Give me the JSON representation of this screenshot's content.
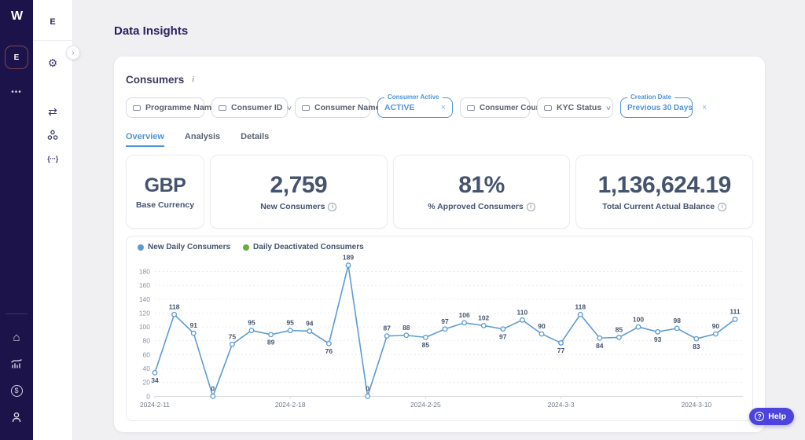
{
  "icons": {
    "logo": "W",
    "org_badge": "E",
    "more_dots": "•••",
    "home": "⌂",
    "dollar": "$",
    "gear": "⚙",
    "swap": "⇄",
    "code": "{···}",
    "chevron_right": "›",
    "chevron_down": "∨",
    "info": "i",
    "question": "?",
    "close": "×"
  },
  "sidebar_secondary": {
    "env_label": "E"
  },
  "page": {
    "title": "Data Insights"
  },
  "panel": {
    "title": "Consumers",
    "filters": [
      {
        "label": "Programme Name",
        "active": false
      },
      {
        "label": "Consumer ID",
        "active": false
      },
      {
        "label": "Consumer Name",
        "active": false
      },
      {
        "label": "Consumer Active",
        "value": "ACTIVE",
        "active": true
      },
      {
        "label": "Consumer Country",
        "active": false
      },
      {
        "label": "KYC Status",
        "active": false
      },
      {
        "label": "Creation Date",
        "value": "Previous 30 Days",
        "active": true
      }
    ],
    "tabs": [
      {
        "label": "Overview",
        "active": true
      },
      {
        "label": "Analysis",
        "active": false
      },
      {
        "label": "Details",
        "active": false
      }
    ],
    "kpis": [
      {
        "value": "GBP",
        "label": "Base Currency",
        "info": false
      },
      {
        "value": "2,759",
        "label": "New Consumers",
        "info": true
      },
      {
        "value": "81%",
        "label": "% Approved Consumers",
        "info": true
      },
      {
        "value": "1,136,624.19",
        "label": "Total Current Actual Balance",
        "info": true
      }
    ]
  },
  "chart_data": {
    "type": "line",
    "title": "",
    "legend_position": "top-left",
    "grid": "dashed-horizontal",
    "ylim": [
      0,
      180
    ],
    "y_ticks": [
      0,
      20,
      40,
      60,
      80,
      100,
      120,
      140,
      160,
      180
    ],
    "n_points": 31,
    "x_labels_shown": [
      "2024-2-11",
      "2024-2-18",
      "2024-2-25",
      "2024-3-3",
      "2024-3-10"
    ],
    "x_label_indices": [
      0,
      7,
      14,
      21,
      28
    ],
    "series": [
      {
        "name": "New Daily Consumers",
        "color": "#5b9bd5",
        "values": [
          34,
          118,
          91,
          0,
          75,
          95,
          89,
          95,
          94,
          76,
          189,
          0,
          87,
          88,
          85,
          97,
          106,
          102,
          97,
          110,
          90,
          77,
          118,
          84,
          85,
          100,
          93,
          98,
          83,
          90,
          111
        ]
      },
      {
        "name": "Daily Deactivated Consumers",
        "color": "#6aaa43",
        "values": []
      }
    ],
    "colors": {
      "line": "#5b9bd5",
      "marker_fill": "#ffffff",
      "label": "#44536e",
      "axis_text": "#8a93a3",
      "grid": "#ebebf0",
      "baseline": "#d9dade"
    }
  },
  "help": {
    "label": "Help"
  }
}
